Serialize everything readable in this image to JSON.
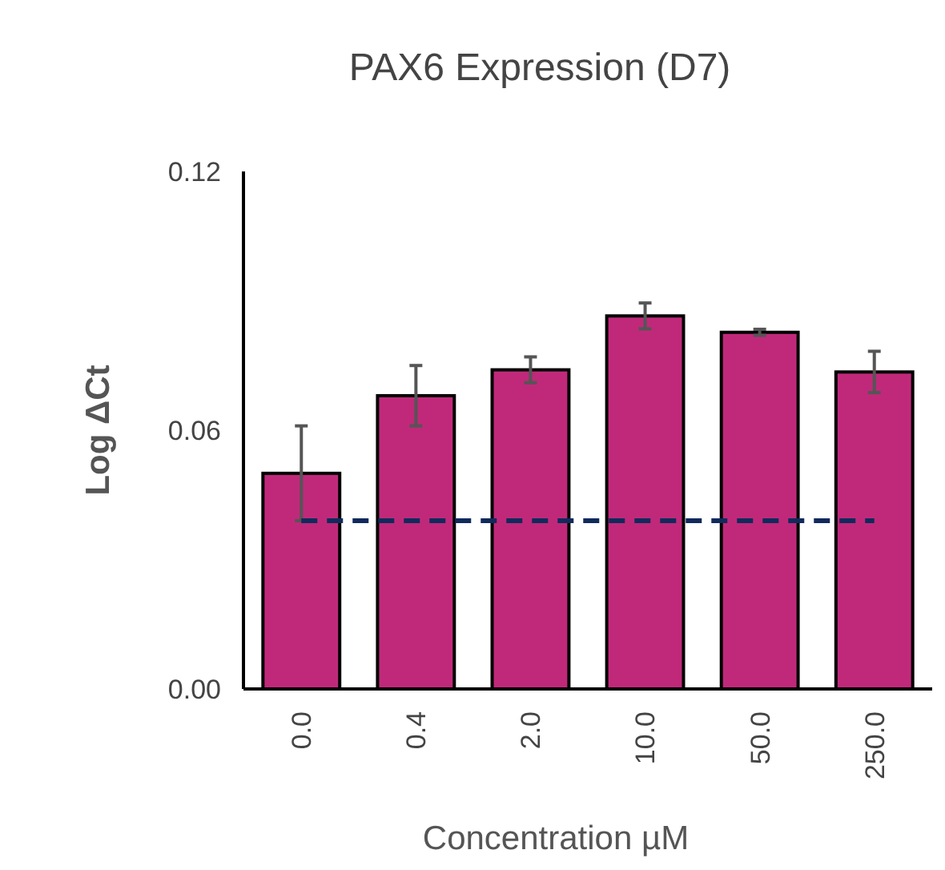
{
  "chart_data": {
    "type": "bar",
    "title": "PAX6 Expression (D7)",
    "xlabel": "Concentration µM",
    "ylabel": "Log ΔCt",
    "categories": [
      "0.0",
      "0.4",
      "2.0",
      "10.0",
      "50.0",
      "250.0"
    ],
    "values": [
      0.05,
      0.068,
      0.074,
      0.0865,
      0.0827,
      0.0735
    ],
    "errors": [
      0.011,
      0.007,
      0.003,
      0.003,
      0.0007,
      0.0048
    ],
    "color": "#c0297a",
    "ylim": [
      0,
      0.12
    ],
    "yticks": [
      {
        "value": 0,
        "label": "0.00"
      },
      {
        "value": 0.06,
        "label": "0.06"
      },
      {
        "value": 0.12,
        "label": "0.12"
      }
    ],
    "ref_lines": [
      {
        "axis": "y",
        "value": 0.039,
        "color": "#102a5c",
        "line_style": "dashed"
      }
    ],
    "grid": false
  }
}
